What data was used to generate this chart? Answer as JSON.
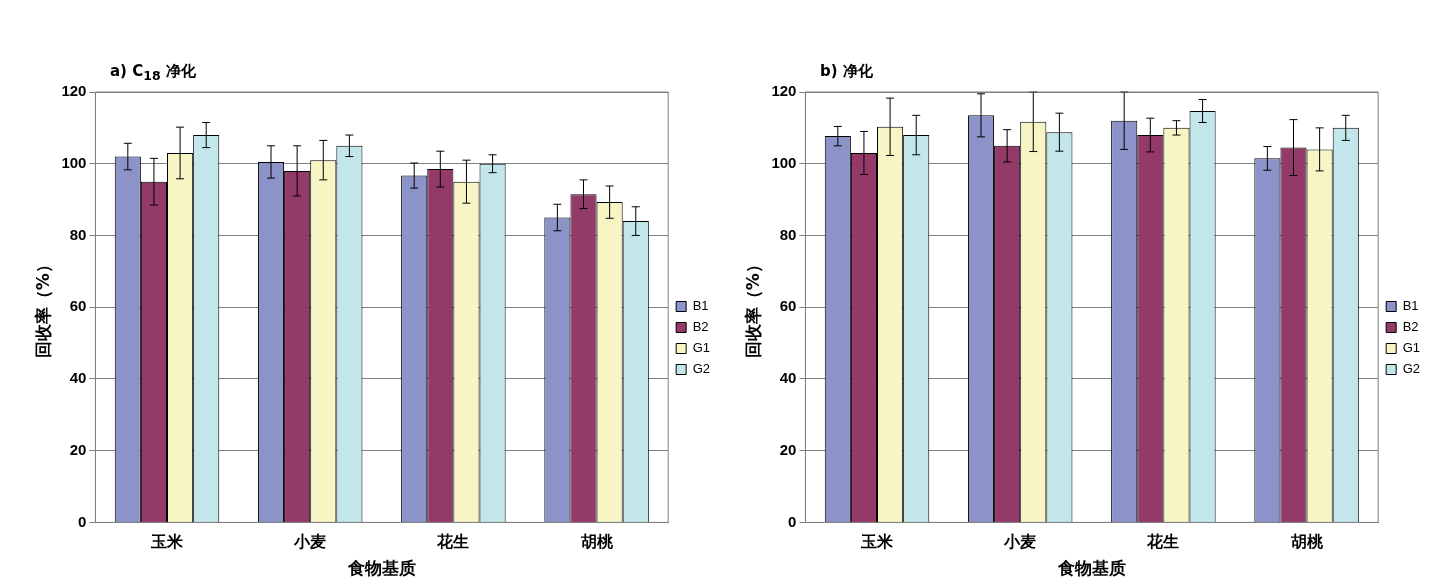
{
  "chart_data": [
    {
      "type": "bar",
      "title": "a) C$_{18}$ 净化",
      "xlabel": "食物基质",
      "ylabel": "回收率（%）",
      "categories": [
        "玉米",
        "小麦",
        "花生",
        "胡桃"
      ],
      "ylim": [
        0,
        120
      ],
      "yticks": [
        0,
        20,
        40,
        60,
        80,
        100,
        120
      ],
      "grid": "y",
      "legend": "right",
      "series": [
        {
          "name": "B1",
          "color": "#8b93c8",
          "values": [
            102,
            100.5,
            96.7,
            85
          ],
          "errors": [
            3.7,
            4.5,
            3.5,
            3.7
          ]
        },
        {
          "name": "B2",
          "color": "#933a68",
          "values": [
            95,
            98,
            98.5,
            91.5
          ],
          "errors": [
            6.5,
            7,
            5,
            4
          ]
        },
        {
          "name": "G1",
          "color": "#f7f5c4",
          "values": [
            103,
            101,
            95,
            89.3
          ],
          "errors": [
            7.2,
            5.5,
            6,
            4.5
          ]
        },
        {
          "name": "G2",
          "color": "#c2e6ea",
          "values": [
            108,
            105,
            100,
            84
          ],
          "errors": [
            3.5,
            3,
            2.5,
            4
          ]
        }
      ]
    },
    {
      "type": "bar",
      "title": "b) 净化",
      "xlabel": "食物基质",
      "ylabel": "回收率（%）",
      "categories": [
        "玉米",
        "小麦",
        "花生",
        "胡桃"
      ],
      "ylim": [
        0,
        120
      ],
      "yticks": [
        0,
        20,
        40,
        60,
        80,
        100,
        120
      ],
      "grid": "y",
      "legend": "right",
      "series": [
        {
          "name": "B1",
          "color": "#8b93c8",
          "values": [
            107.7,
            113.5,
            112,
            101.5
          ],
          "errors": [
            2.7,
            6,
            8,
            3.3
          ]
        },
        {
          "name": "B2",
          "color": "#933a68",
          "values": [
            103,
            105,
            108,
            104.5
          ],
          "errors": [
            6,
            4.5,
            4.7,
            7.8
          ]
        },
        {
          "name": "G1",
          "color": "#f7f5c4",
          "values": [
            110.3,
            111.7,
            110,
            104
          ],
          "errors": [
            8,
            8.3,
            2,
            6
          ]
        },
        {
          "name": "G2",
          "color": "#c2e6ea",
          "values": [
            108,
            108.8,
            114.7,
            110
          ],
          "errors": [
            5.5,
            5.3,
            3.2,
            3.5
          ]
        }
      ]
    }
  ]
}
